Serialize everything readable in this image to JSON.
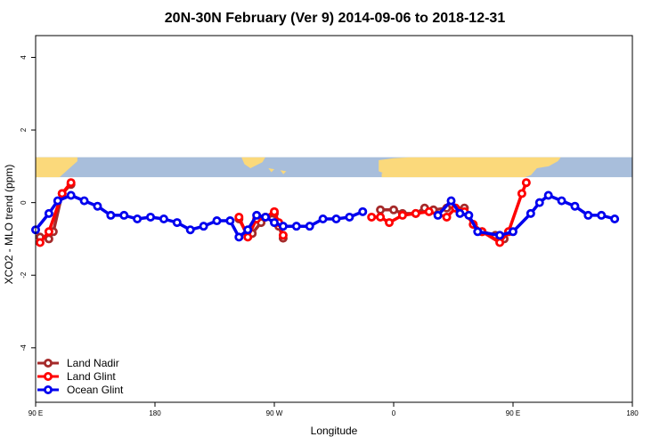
{
  "chart_data": {
    "type": "line",
    "title": "20N-30N February (Ver 9)   2014-09-06 to 2018-12-31",
    "xlabel": "Longitude",
    "ylabel": "XCO2 - MLO trend (ppm)",
    "xlim": [
      -90,
      180
    ],
    "ylim": [
      -5.5,
      4.6
    ],
    "x_ticks": [
      {
        "value": -90,
        "label": "90 E"
      },
      {
        "value": -36,
        "label": "180"
      },
      {
        "value": 18,
        "label": "90 W"
      },
      {
        "value": 72,
        "label": "0"
      },
      {
        "value": 126,
        "label": "90 E"
      },
      {
        "value": 180,
        "label": "180"
      }
    ],
    "y_ticks": [
      {
        "value": -4,
        "label": "-4"
      },
      {
        "value": -2,
        "label": "-2"
      },
      {
        "value": 0,
        "label": "0"
      },
      {
        "value": 2,
        "label": "2"
      },
      {
        "value": 4,
        "label": "4"
      }
    ],
    "grid": false,
    "legend_position": "bottom-left",
    "map_strip": {
      "ymin": 0.7,
      "ymax": 1.25,
      "ocean_color": "#a8bedb",
      "land_color": "#fbd97b"
    },
    "series": [
      {
        "name": "Land Nadir",
        "color": "#a52a2a",
        "segments": [
          [
            [
              -88,
              -0.95
            ],
            [
              -84,
              -1.0
            ],
            [
              -82,
              -0.8
            ],
            [
              -78,
              0.25
            ],
            [
              -74,
              0.5
            ]
          ],
          [
            [
              2,
              -0.45
            ],
            [
              6,
              -0.9
            ],
            [
              8,
              -0.85
            ],
            [
              12,
              -0.55
            ],
            [
              18,
              -0.3
            ],
            [
              20,
              -0.65
            ],
            [
              22,
              -0.98
            ]
          ],
          [
            [
              66,
              -0.2
            ],
            [
              72,
              -0.2
            ],
            [
              76,
              -0.3
            ],
            [
              82,
              -0.3
            ],
            [
              86,
              -0.15
            ],
            [
              90,
              -0.2
            ],
            [
              96,
              -0.15
            ],
            [
              100,
              -0.15
            ],
            [
              104,
              -0.15
            ],
            [
              108,
              -0.6
            ],
            [
              112,
              -0.8
            ],
            [
              118,
              -0.9
            ],
            [
              122,
              -1.0
            ],
            [
              124,
              -0.8
            ]
          ]
        ]
      },
      {
        "name": "Land Glint",
        "color": "#ff0000",
        "segments": [
          [
            [
              -88,
              -1.1
            ],
            [
              -84,
              -0.8
            ],
            [
              -78,
              0.25
            ],
            [
              -74,
              0.55
            ]
          ],
          [
            [
              2,
              -0.4
            ],
            [
              6,
              -0.95
            ],
            [
              10,
              -0.45
            ],
            [
              14,
              -0.4
            ],
            [
              18,
              -0.25
            ],
            [
              20,
              -0.55
            ],
            [
              22,
              -0.9
            ]
          ],
          [
            [
              62,
              -0.4
            ],
            [
              66,
              -0.4
            ],
            [
              70,
              -0.55
            ],
            [
              76,
              -0.35
            ],
            [
              82,
              -0.3
            ],
            [
              88,
              -0.25
            ],
            [
              96,
              -0.4
            ],
            [
              100,
              -0.15
            ],
            [
              104,
              -0.25
            ],
            [
              108,
              -0.6
            ],
            [
              112,
              -0.8
            ],
            [
              120,
              -1.1
            ],
            [
              124,
              -0.8
            ],
            [
              130,
              0.25
            ],
            [
              132,
              0.55
            ]
          ]
        ]
      },
      {
        "name": "Ocean Glint",
        "color": "#0000ee",
        "segments": [
          [
            [
              -90,
              -0.75
            ],
            [
              -84,
              -0.3
            ],
            [
              -80,
              0.05
            ],
            [
              -74,
              0.2
            ],
            [
              -68,
              0.05
            ],
            [
              -62,
              -0.1
            ],
            [
              -56,
              -0.35
            ],
            [
              -50,
              -0.35
            ],
            [
              -44,
              -0.45
            ],
            [
              -38,
              -0.4
            ],
            [
              -32,
              -0.45
            ],
            [
              -26,
              -0.55
            ],
            [
              -20,
              -0.75
            ],
            [
              -14,
              -0.65
            ],
            [
              -8,
              -0.5
            ],
            [
              -2,
              -0.5
            ],
            [
              2,
              -0.95
            ],
            [
              6,
              -0.75
            ],
            [
              10,
              -0.35
            ],
            [
              14,
              -0.4
            ],
            [
              18,
              -0.55
            ],
            [
              22,
              -0.65
            ],
            [
              28,
              -0.65
            ],
            [
              34,
              -0.65
            ],
            [
              40,
              -0.45
            ],
            [
              46,
              -0.45
            ],
            [
              52,
              -0.4
            ],
            [
              58,
              -0.25
            ]
          ],
          [
            [
              92,
              -0.35
            ],
            [
              98,
              0.05
            ],
            [
              102,
              -0.3
            ],
            [
              106,
              -0.35
            ],
            [
              110,
              -0.8
            ],
            [
              120,
              -0.9
            ],
            [
              126,
              -0.8
            ],
            [
              134,
              -0.3
            ],
            [
              138,
              0.0
            ],
            [
              142,
              0.2
            ],
            [
              148,
              0.05
            ],
            [
              154,
              -0.1
            ],
            [
              160,
              -0.35
            ],
            [
              166,
              -0.35
            ],
            [
              172,
              -0.45
            ]
          ]
        ]
      }
    ]
  }
}
